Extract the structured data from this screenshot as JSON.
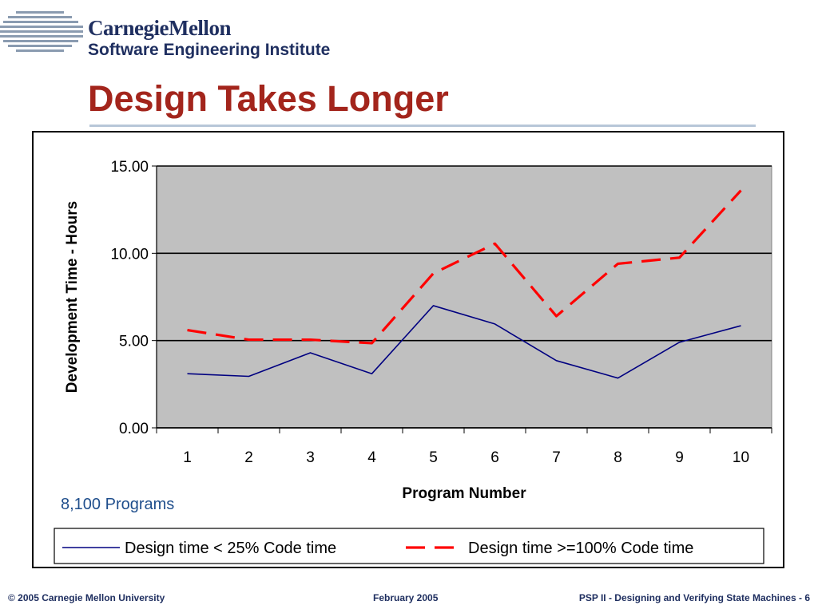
{
  "header": {
    "logo_line1": "CarnegieMellon",
    "logo_line2": "Software Engineering Institute",
    "title": "Design Takes Longer"
  },
  "annotation": "8,100 Programs",
  "footer": {
    "left": "© 2005 Carnegie Mellon University",
    "center": "February 2005",
    "right": "PSP II - Designing and Verifying State Machines - 6"
  },
  "colors": {
    "title": "#a3251c",
    "brand": "#1f2f60",
    "plot_background": "#c0c0c0",
    "series_low": "#000080",
    "series_high": "#ff0000",
    "annotation": "#1f4e8c"
  },
  "chart_data": {
    "type": "line",
    "x": [
      "1",
      "2",
      "3",
      "4",
      "5",
      "6",
      "7",
      "8",
      "9",
      "10"
    ],
    "series": [
      {
        "name": "Design time < 25% Code time",
        "values": [
          3.1,
          2.95,
          4.3,
          3.1,
          7.0,
          5.95,
          3.85,
          2.85,
          4.9,
          5.85
        ],
        "color": "#000080",
        "style": "solid"
      },
      {
        "name": "Design time >=100% Code time",
        "values": [
          5.6,
          5.05,
          5.05,
          4.85,
          8.85,
          10.55,
          6.4,
          9.4,
          9.75,
          13.6
        ],
        "color": "#ff0000",
        "style": "dashed"
      }
    ],
    "xlabel": "Program Number",
    "ylabel": "Development Time - Hours",
    "yticks": [
      "0.00",
      "5.00",
      "10.00",
      "15.00"
    ],
    "ylim": [
      0,
      15
    ],
    "grid": "horizontal",
    "legend": "bottom"
  }
}
